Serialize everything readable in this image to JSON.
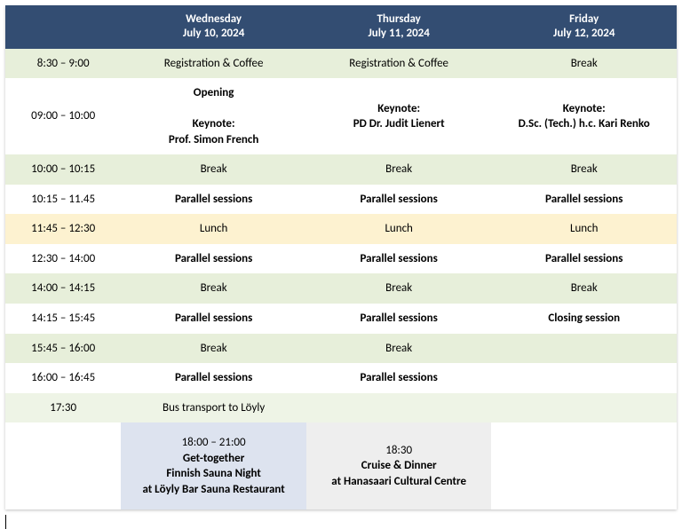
{
  "colors": {
    "header_bg": "#334d72",
    "header_text": "#ffffff",
    "row_green": "#e7efda",
    "row_lightgreen": "#eef4e6",
    "row_white": "#ffffff",
    "row_yellow": "#fdf2d0",
    "footer_time_bg": "#ffffff",
    "footer_event_a_bg": "#dde3ef",
    "footer_event_b_bg": "#eeeeee",
    "footer_event_c_bg": "#ffffff"
  },
  "header": {
    "time_col": "",
    "days": {
      "wed": {
        "dow": "Wednesday",
        "date": "July 10, 2024"
      },
      "thu": {
        "dow": "Thursday",
        "date": "July 11, 2024"
      },
      "fri": {
        "dow": "Friday",
        "date": "July 12, 2024"
      }
    }
  },
  "rows": {
    "r0": {
      "time": "8:30 – 9:00",
      "wed": "Registration & Coffee",
      "thu": "Registration & Coffee",
      "fri": "Break"
    },
    "r1": {
      "time": "09:00 – 10:00",
      "wed": {
        "l1": "Opening",
        "l2": "Keynote:",
        "l3": "Prof. Simon French"
      },
      "thu": {
        "l1": "Keynote:",
        "l2": "PD Dr. Judit Lienert"
      },
      "fri": {
        "l1": "Keynote:",
        "l2": "D.Sc. (Tech.) h.c. Kari Renko"
      }
    },
    "r2": {
      "time": "10:00 – 10:15",
      "wed": "Break",
      "thu": "Break",
      "fri": "Break"
    },
    "r3": {
      "time": "10:15 – 11.45",
      "wed": "Parallel sessions",
      "thu": "Parallel sessions",
      "fri": "Parallel sessions"
    },
    "r4": {
      "time": "11:45 – 12:30",
      "wed": "Lunch",
      "thu": "Lunch",
      "fri": "Lunch"
    },
    "r5": {
      "time": "12:30 – 14:00",
      "wed": "Parallel sessions",
      "thu": "Parallel sessions",
      "fri": "Parallel sessions"
    },
    "r6": {
      "time": "14:00 – 14:15",
      "wed": "Break",
      "thu": "Break",
      "fri": "Break"
    },
    "r7": {
      "time": "14:15 – 15:45",
      "wed": "Parallel sessions",
      "thu": "Parallel sessions",
      "fri": "Closing session"
    },
    "r8": {
      "time": "15:45 – 16:00",
      "wed": "Break",
      "thu": "Break",
      "fri": ""
    },
    "r9": {
      "time": "16:00 – 16:45",
      "wed": "Parallel sessions",
      "thu": "Parallel sessions",
      "fri": ""
    },
    "r10": {
      "time": "17:30",
      "wed": "Bus transport to Löyly",
      "thu": "",
      "fri": ""
    },
    "footer": {
      "time": "",
      "wed": {
        "l1": "18:00 – 21:00",
        "l2": "Get-together",
        "l3": "Finnish Sauna Night",
        "l4": "at Löyly Bar Sauna Restaurant"
      },
      "thu": {
        "l1": "18:30",
        "l2": "Cruise & Dinner",
        "l3": "at Hanasaari Cultural Centre"
      },
      "fri": ""
    }
  }
}
